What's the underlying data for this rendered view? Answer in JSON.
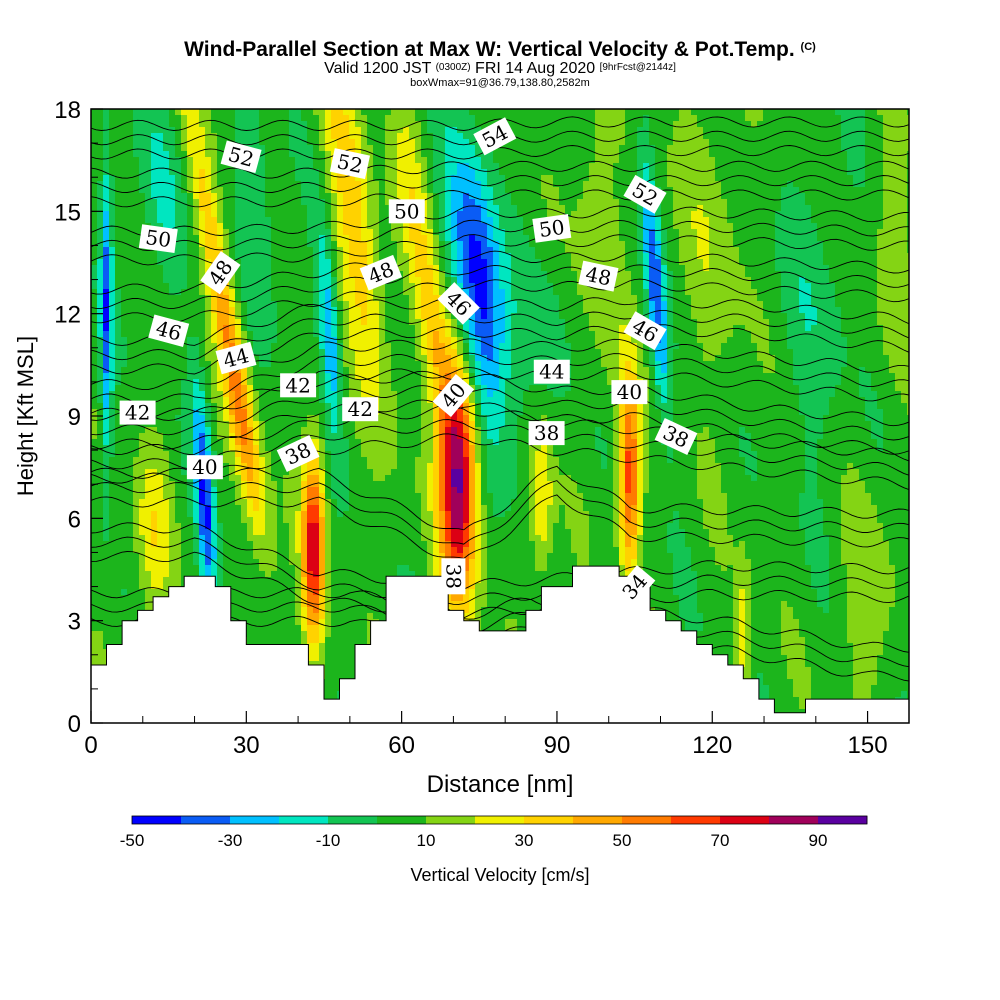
{
  "title": "Wind-Parallel Section at Max W: Vertical Velocity & Pot.Temp.",
  "title_mark": "(C)",
  "subtitle_a": "Valid 1200 JST",
  "subtitle_b": "(0300Z)",
  "subtitle_c": "FRI 14 Aug 2020",
  "subtitle_d": "[9hrFcst@2144z]",
  "subtitle2": "boxWmax=91@36.79,138.80,2582m",
  "chart_data": {
    "type": "heatmap",
    "xlabel": "Distance [nm]",
    "ylabel": "Height [Kft MSL]",
    "xlim": [
      0,
      158
    ],
    "ylim": [
      0,
      18
    ],
    "xticks": [
      0,
      30,
      60,
      90,
      120,
      150
    ],
    "yticks": [
      0,
      3,
      6,
      9,
      12,
      15,
      18
    ],
    "colorbar": {
      "label": "Vertical Velocity [cm/s]",
      "tick_labels": [
        "-50",
        "-30",
        "-10",
        "10",
        "30",
        "50",
        "70",
        "90"
      ],
      "tick_values": [
        -50,
        -30,
        -10,
        10,
        30,
        50,
        70,
        90
      ],
      "bins": [
        -50,
        -40,
        -30,
        -20,
        -10,
        0,
        10,
        20,
        30,
        40,
        50,
        60,
        70,
        80,
        90,
        100
      ],
      "colors": [
        "#0000ff",
        "#0a5cf5",
        "#00c0ff",
        "#00e6c0",
        "#13c453",
        "#1cb51c",
        "#84d414",
        "#f0f000",
        "#ffd200",
        "#ffa800",
        "#ff7b00",
        "#ff3a00",
        "#dc0014",
        "#a0005a",
        "#5a00a0"
      ]
    },
    "background_value": 5,
    "terrain_kft": [
      [
        0,
        1.7
      ],
      [
        3,
        1.7
      ],
      [
        3,
        2.3
      ],
      [
        6,
        2.3
      ],
      [
        6,
        3.0
      ],
      [
        9,
        3.0
      ],
      [
        9,
        3.3
      ],
      [
        12,
        3.3
      ],
      [
        12,
        3.7
      ],
      [
        15,
        3.7
      ],
      [
        15,
        4.0
      ],
      [
        18,
        4.0
      ],
      [
        18,
        4.3
      ],
      [
        24,
        4.3
      ],
      [
        24,
        4.0
      ],
      [
        27,
        4.0
      ],
      [
        27,
        3.0
      ],
      [
        30,
        3.0
      ],
      [
        30,
        2.3
      ],
      [
        42,
        2.3
      ],
      [
        42,
        1.7
      ],
      [
        45,
        1.7
      ],
      [
        45,
        0.7
      ],
      [
        48,
        0.7
      ],
      [
        48,
        1.3
      ],
      [
        51,
        1.3
      ],
      [
        51,
        2.3
      ],
      [
        54,
        2.3
      ],
      [
        54,
        3.0
      ],
      [
        57,
        3.0
      ],
      [
        57,
        4.3
      ],
      [
        69,
        4.3
      ],
      [
        69,
        3.3
      ],
      [
        72,
        3.3
      ],
      [
        72,
        3.0
      ],
      [
        75,
        3.0
      ],
      [
        75,
        2.7
      ],
      [
        84,
        2.7
      ],
      [
        84,
        3.3
      ],
      [
        87,
        3.3
      ],
      [
        87,
        4.0
      ],
      [
        93,
        4.0
      ],
      [
        93,
        4.6
      ],
      [
        102,
        4.6
      ],
      [
        102,
        4.3
      ],
      [
        105,
        4.3
      ],
      [
        105,
        4.0
      ],
      [
        108,
        4.0
      ],
      [
        108,
        3.3
      ],
      [
        111,
        3.3
      ],
      [
        111,
        3.0
      ],
      [
        114,
        3.0
      ],
      [
        114,
        2.7
      ],
      [
        117,
        2.7
      ],
      [
        117,
        2.3
      ],
      [
        120,
        2.3
      ],
      [
        120,
        2.0
      ],
      [
        123,
        2.0
      ],
      [
        123,
        1.7
      ],
      [
        126,
        1.7
      ],
      [
        126,
        1.3
      ],
      [
        129,
        1.3
      ],
      [
        129,
        0.7
      ],
      [
        132,
        0.7
      ],
      [
        132,
        0.3
      ],
      [
        138,
        0.3
      ],
      [
        138,
        0.7
      ],
      [
        158,
        0.7
      ]
    ],
    "velocity_features": [
      {
        "x": 26,
        "y": 12.0,
        "sx": 1.8,
        "sy": 4.5,
        "lean": -1.2,
        "amp": 35
      },
      {
        "x": 29,
        "y": 8.5,
        "sx": 1.6,
        "sy": 2.5,
        "lean": -1.0,
        "amp": 22
      },
      {
        "x": 22,
        "y": 6.5,
        "sx": 1.2,
        "sy": 2.5,
        "lean": -0.4,
        "amp": -45
      },
      {
        "x": 43,
        "y": 5.2,
        "sx": 1.5,
        "sy": 2.0,
        "lean": 0,
        "amp": 70
      },
      {
        "x": 46,
        "y": 11.5,
        "sx": 1.3,
        "sy": 2.0,
        "lean": -0.5,
        "amp": -35
      },
      {
        "x": 51,
        "y": 14.5,
        "sx": 2.8,
        "sy": 3.8,
        "lean": -0.9,
        "amp": 32
      },
      {
        "x": 71,
        "y": 7.2,
        "sx": 2.6,
        "sy": 2.6,
        "lean": 0,
        "amp": 88
      },
      {
        "x": 75,
        "y": 12.5,
        "sx": 3.5,
        "sy": 3.0,
        "lean": -0.6,
        "amp": -55
      },
      {
        "x": 67,
        "y": 11.0,
        "sx": 2.0,
        "sy": 2.0,
        "lean": -0.8,
        "amp": 28
      },
      {
        "x": 104,
        "y": 7.2,
        "sx": 1.4,
        "sy": 2.0,
        "lean": 0,
        "amp": 60
      },
      {
        "x": 109,
        "y": 12.8,
        "sx": 1.2,
        "sy": 2.5,
        "lean": -0.5,
        "amp": -40
      },
      {
        "x": 3,
        "y": 12.0,
        "sx": 0.8,
        "sy": 3.0,
        "lean": 0,
        "amp": -40
      },
      {
        "x": 12,
        "y": 5.5,
        "sx": 2.5,
        "sy": 1.8,
        "lean": 0,
        "amp": 20
      },
      {
        "x": 87,
        "y": 6.5,
        "sx": 1.5,
        "sy": 1.6,
        "lean": 0,
        "amp": 28
      },
      {
        "x": 13,
        "y": 15.5,
        "sx": 3.0,
        "sy": 2.0,
        "lean": -0.8,
        "amp": -15
      },
      {
        "x": 33,
        "y": 15.0,
        "sx": 3.0,
        "sy": 2.5,
        "lean": -0.8,
        "amp": -12
      },
      {
        "x": 62,
        "y": 15.5,
        "sx": 2.5,
        "sy": 2.5,
        "lean": -0.6,
        "amp": 18
      },
      {
        "x": 98,
        "y": 14.0,
        "sx": 3.0,
        "sy": 3.0,
        "lean": -0.6,
        "amp": 15
      },
      {
        "x": 120,
        "y": 14.5,
        "sx": 4.0,
        "sy": 3.5,
        "lean": -0.4,
        "amp": 12
      },
      {
        "x": 140,
        "y": 12.0,
        "sx": 5.0,
        "sy": 3.5,
        "lean": 0,
        "amp": -10
      },
      {
        "x": 150,
        "y": 3.5,
        "sx": 4.0,
        "sy": 2.0,
        "lean": 0,
        "amp": 12
      },
      {
        "x": 126,
        "y": 2.5,
        "sx": 1.0,
        "sy": 1.5,
        "lean": 0,
        "amp": 22
      },
      {
        "x": 155,
        "y": 14.0,
        "sx": 3.0,
        "sy": 3.0,
        "lean": 0,
        "amp": 10
      },
      {
        "x": 89,
        "y": 11.5,
        "sx": 3.0,
        "sy": 2.0,
        "lean": -0.6,
        "amp": -10
      }
    ],
    "isentropes": [
      {
        "v": 34,
        "y0": 4.0,
        "u": [
          [
            50,
            -0.6
          ],
          [
            72,
            -1.3
          ],
          [
            85,
            -0.8
          ],
          [
            110,
            -1.2
          ],
          [
            125,
            -1.5
          ],
          [
            150,
            -2.2
          ]
        ]
      },
      {
        "v": 36,
        "y0": 5.0,
        "u": [
          [
            20,
            0.3
          ],
          [
            44,
            -1.0
          ],
          [
            72,
            -1.4
          ],
          [
            104,
            -1.0
          ],
          [
            120,
            -0.8
          ],
          [
            150,
            -0.9
          ]
        ]
      },
      {
        "v": 38,
        "y0": 6.5,
        "u": [
          [
            20,
            0.4
          ],
          [
            44,
            0.4
          ],
          [
            72,
            -1.4
          ],
          [
            90,
            0.6
          ],
          [
            104,
            -0.6
          ],
          [
            130,
            -0.7
          ],
          [
            158,
            -0.8
          ]
        ]
      },
      {
        "v": 40,
        "y0": 7.8,
        "u": [
          [
            20,
            -0.2
          ],
          [
            44,
            0.6
          ],
          [
            72,
            1.0
          ],
          [
            90,
            0.6
          ],
          [
            104,
            0.4
          ],
          [
            130,
            0
          ],
          [
            158,
            -0.4
          ]
        ]
      },
      {
        "v": 42,
        "y0": 9.0,
        "u": [
          [
            20,
            -0.4
          ],
          [
            44,
            0.6
          ],
          [
            72,
            0.8
          ],
          [
            90,
            0.3
          ],
          [
            104,
            0.4
          ],
          [
            130,
            -0.2
          ],
          [
            158,
            -0.6
          ]
        ]
      },
      {
        "v": 44,
        "y0": 10.3,
        "u": [
          [
            20,
            -0.8
          ],
          [
            44,
            0.3
          ],
          [
            72,
            0.4
          ],
          [
            90,
            0.3
          ],
          [
            104,
            0.4
          ],
          [
            130,
            0
          ],
          [
            158,
            -0.4
          ]
        ]
      },
      {
        "v": 46,
        "y0": 11.6,
        "u": [
          [
            20,
            -0.8
          ],
          [
            44,
            0.2
          ],
          [
            72,
            0.3
          ],
          [
            90,
            0.2
          ],
          [
            104,
            0.4
          ],
          [
            130,
            0.2
          ],
          [
            158,
            -0.2
          ]
        ]
      },
      {
        "v": 48,
        "y0": 12.9,
        "u": [
          [
            20,
            -0.6
          ],
          [
            44,
            -0.1
          ],
          [
            72,
            0.4
          ],
          [
            90,
            0.3
          ],
          [
            104,
            0.4
          ],
          [
            130,
            0.2
          ],
          [
            158,
            0
          ]
        ]
      },
      {
        "v": 50,
        "y0": 14.3,
        "u": [
          [
            20,
            -0.3
          ],
          [
            44,
            -0.2
          ],
          [
            72,
            0.3
          ],
          [
            90,
            0.2
          ],
          [
            104,
            0.3
          ],
          [
            130,
            0.2
          ],
          [
            158,
            0.1
          ]
        ]
      },
      {
        "v": 52,
        "y0": 15.7,
        "u": [
          [
            20,
            0
          ],
          [
            44,
            0
          ],
          [
            72,
            0.2
          ],
          [
            90,
            0.2
          ],
          [
            104,
            0.2
          ],
          [
            130,
            0.2
          ],
          [
            158,
            0.2
          ]
        ]
      },
      {
        "v": 54,
        "y0": 17.0,
        "u": [
          [
            20,
            0.1
          ],
          [
            44,
            0.1
          ],
          [
            72,
            0.1
          ],
          [
            90,
            0.2
          ],
          [
            104,
            0.2
          ],
          [
            130,
            0.2
          ],
          [
            158,
            0.2
          ]
        ]
      }
    ],
    "contour_labels": [
      {
        "text": "52",
        "x": 29,
        "y": 16.6,
        "rot": 15
      },
      {
        "text": "52",
        "x": 50,
        "y": 16.4,
        "rot": 12
      },
      {
        "text": "54",
        "x": 78,
        "y": 17.2,
        "rot": -28
      },
      {
        "text": "52",
        "x": 107,
        "y": 15.5,
        "rot": 30
      },
      {
        "text": "50",
        "x": 13,
        "y": 14.2,
        "rot": 8
      },
      {
        "text": "50",
        "x": 61,
        "y": 15.0,
        "rot": 0
      },
      {
        "text": "50",
        "x": 89,
        "y": 14.5,
        "rot": -8
      },
      {
        "text": "48",
        "x": 25,
        "y": 13.2,
        "rot": -55
      },
      {
        "text": "48",
        "x": 56,
        "y": 13.2,
        "rot": -22
      },
      {
        "text": "46",
        "x": 71,
        "y": 12.3,
        "rot": 45
      },
      {
        "text": "48",
        "x": 98,
        "y": 13.1,
        "rot": 12
      },
      {
        "text": "46",
        "x": 15,
        "y": 11.5,
        "rot": 15
      },
      {
        "text": "44",
        "x": 28,
        "y": 10.7,
        "rot": -15
      },
      {
        "text": "46",
        "x": 107,
        "y": 11.5,
        "rot": 30
      },
      {
        "text": "42",
        "x": 40,
        "y": 9.9,
        "rot": 0
      },
      {
        "text": "44",
        "x": 89,
        "y": 10.3,
        "rot": 0
      },
      {
        "text": "40",
        "x": 70,
        "y": 9.6,
        "rot": -50
      },
      {
        "text": "40",
        "x": 104,
        "y": 9.7,
        "rot": 0
      },
      {
        "text": "42",
        "x": 9,
        "y": 9.1,
        "rot": 0
      },
      {
        "text": "42",
        "x": 52,
        "y": 9.2,
        "rot": 0
      },
      {
        "text": "38",
        "x": 88,
        "y": 8.5,
        "rot": 0
      },
      {
        "text": "38",
        "x": 113,
        "y": 8.4,
        "rot": 25
      },
      {
        "text": "40",
        "x": 22,
        "y": 7.5,
        "rot": 0
      },
      {
        "text": "38",
        "x": 40,
        "y": 7.9,
        "rot": -25
      },
      {
        "text": "38",
        "x": 70,
        "y": 4.3,
        "rot": 90
      },
      {
        "text": "34",
        "x": 105,
        "y": 4.0,
        "rot": -50
      }
    ]
  }
}
